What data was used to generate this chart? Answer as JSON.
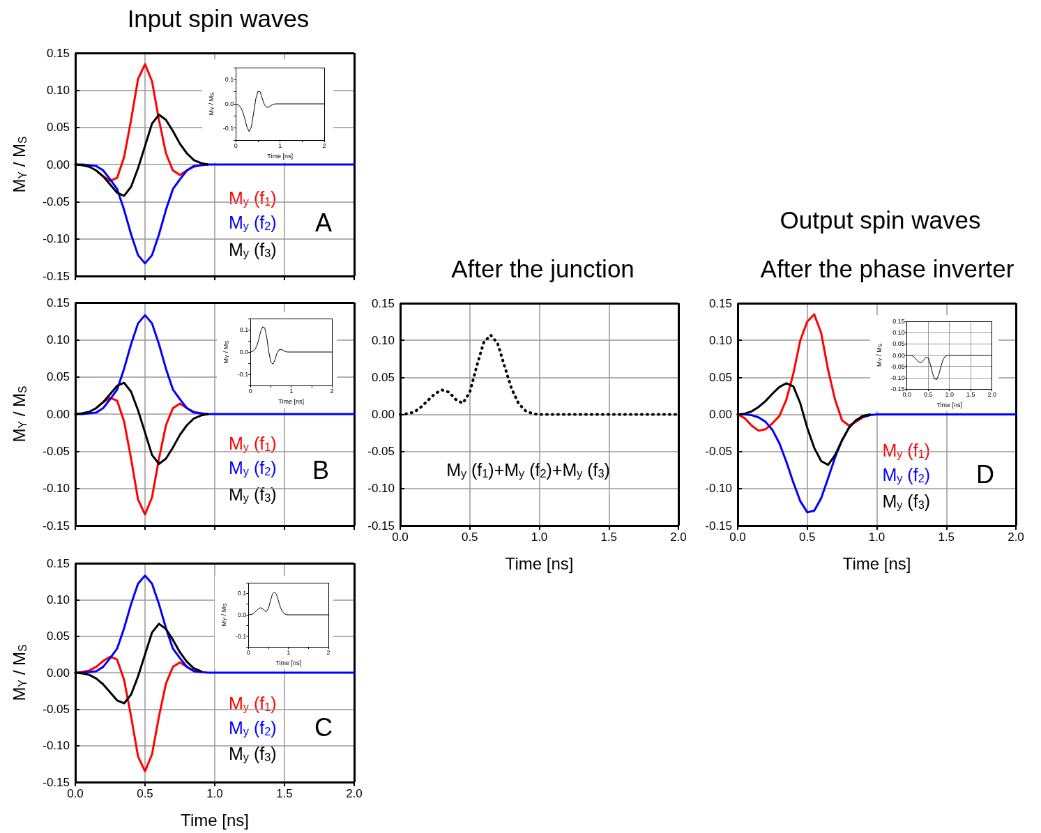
{
  "chart_data": [
    {
      "type": "line",
      "title": "Input spin waves",
      "ylabel": "M$_{Y}$ / M$_{S}$",
      "x": [
        0,
        0.05,
        0.1,
        0.15,
        0.2,
        0.25,
        0.3,
        0.35,
        0.4,
        0.45,
        0.5,
        0.55,
        0.6,
        0.65,
        0.7,
        0.75,
        0.8,
        0.85,
        0.9,
        0.95,
        1,
        1.5,
        2
      ],
      "xlim": [
        0,
        2
      ],
      "ylim": [
        -0.15,
        0.15
      ],
      "xticks": [
        {
          "value": 0,
          "label": null
        },
        {
          "value": 0.5,
          "label": null
        },
        {
          "value": 1,
          "label": null
        },
        {
          "value": 1.5,
          "label": null
        },
        {
          "value": 2,
          "label": null
        }
      ],
      "yticks": [
        {
          "value": -0.15,
          "label": "-0.15"
        },
        {
          "value": -0.1,
          "label": "-0.10"
        },
        {
          "value": -0.05,
          "label": "-0.05"
        },
        {
          "value": 0,
          "label": "0.00"
        },
        {
          "value": 0.05,
          "label": "0.05"
        },
        {
          "value": 0.1,
          "label": "0.10"
        },
        {
          "value": 0.15,
          "label": "0.15"
        }
      ],
      "tick_labels": "y",
      "grid": true,
      "marker": "none",
      "line_style": "solid",
      "annotations": [
        "A"
      ],
      "series": [
        {
          "name": "M$_{y}$ (f$_{1}$)",
          "color": "#ff0000",
          "x": [
            0.15,
            0.2,
            0.25,
            0.3,
            0.35,
            0.4,
            0.45,
            0.5,
            0.55,
            0.6,
            0.65,
            0.7,
            0.75,
            0.8,
            0.85,
            0.9,
            0.95
          ],
          "values": [
            -0.008,
            -0.016,
            -0.022,
            -0.018,
            0.01,
            0.06,
            0.115,
            0.135,
            0.112,
            0.06,
            0.015,
            -0.008,
            -0.014,
            -0.008,
            -0.003,
            -0.001,
            0
          ]
        },
        {
          "name": "M$_{y}$ (f$_{2}$)",
          "color": "#0000ff",
          "values": [
            0,
            0,
            -0.001,
            -0.002,
            -0.008,
            -0.02,
            -0.033,
            -0.061,
            -0.094,
            -0.122,
            -0.133,
            -0.122,
            -0.094,
            -0.061,
            -0.033,
            -0.02,
            -0.008,
            -0.002,
            -0.001,
            0,
            0,
            0,
            0
          ]
        },
        {
          "name": "M$_{y}$ (f$_{3}$)",
          "color": "#000000",
          "x": [
            0,
            0.05,
            0.1,
            0.15,
            0.2,
            0.25,
            0.3,
            0.35,
            0.4,
            0.45,
            0.5,
            0.55,
            0.6,
            0.65,
            0.7,
            0.75,
            0.8,
            0.85,
            0.9,
            0.95
          ],
          "values": [
            0,
            -0.001,
            -0.003,
            -0.008,
            -0.016,
            -0.027,
            -0.038,
            -0.042,
            -0.03,
            -0.005,
            0.025,
            0.055,
            0.067,
            0.06,
            0.045,
            0.028,
            0.015,
            0.006,
            0.002,
            0
          ]
        }
      ]
    },
    {
      "type": "line",
      "xlabel": "Time [ns]",
      "ylabel": "M$_{Y}$ / M$_{S}$",
      "x": [
        0,
        0.05,
        0.1,
        0.15,
        0.2,
        0.25,
        0.3,
        0.35,
        0.4,
        0.45,
        0.5,
        0.55,
        0.6,
        0.65,
        0.7,
        0.75,
        0.8,
        0.85,
        0.9,
        0.95,
        1,
        1.5,
        2
      ],
      "xlim": [
        0,
        2
      ],
      "ylim": [
        -0.15,
        0.15
      ],
      "xticks": [
        0,
        {
          "value": 0.5,
          "label": null
        },
        1,
        {
          "value": 1.5,
          "label": null
        },
        2
      ],
      "yticks": [
        {
          "value": -0.15,
          "label": null
        },
        {
          "value": -0.1,
          "label": "-0.1"
        },
        {
          "value": -0.05,
          "label": null
        },
        {
          "value": 0,
          "label": "0.0"
        },
        {
          "value": 0.05,
          "label": null
        },
        {
          "value": 0.1,
          "label": "0.1"
        },
        {
          "value": 0.15,
          "label": null
        }
      ],
      "grid": false,
      "marker": "none",
      "line_style": "solid",
      "series": [
        {
          "color": "#000000",
          "values": [
            0,
            -0.003,
            -0.012,
            -0.03,
            -0.06,
            -0.095,
            -0.115,
            -0.095,
            -0.04,
            0.02,
            0.052,
            0.05,
            0.02,
            -0.005,
            -0.015,
            -0.013,
            -0.006,
            -0.002,
            0,
            0,
            0,
            0,
            0
          ]
        }
      ]
    },
    {
      "type": "line",
      "ylabel": "M$_{Y}$ / M$_{S}$",
      "x": [
        0,
        0.05,
        0.1,
        0.15,
        0.2,
        0.25,
        0.3,
        0.35,
        0.4,
        0.45,
        0.5,
        0.55,
        0.6,
        0.65,
        0.7,
        0.75,
        0.8,
        0.85,
        0.9,
        0.95,
        1,
        1.5,
        2
      ],
      "xlim": [
        0,
        2
      ],
      "ylim": [
        -0.15,
        0.15
      ],
      "xticks": [
        {
          "value": 0,
          "label": null
        },
        {
          "value": 0.5,
          "label": null
        },
        {
          "value": 1,
          "label": null
        },
        {
          "value": 1.5,
          "label": null
        },
        {
          "value": 2,
          "label": null
        }
      ],
      "yticks": [
        {
          "value": -0.15,
          "label": "-0.15"
        },
        {
          "value": -0.1,
          "label": "-0.10"
        },
        {
          "value": -0.05,
          "label": "-0.05"
        },
        {
          "value": 0,
          "label": "0.00"
        },
        {
          "value": 0.05,
          "label": "0.05"
        },
        {
          "value": 0.1,
          "label": "0.10"
        },
        {
          "value": 0.15,
          "label": "0.15"
        }
      ],
      "tick_labels": "y",
      "grid": true,
      "marker": "none",
      "line_style": "solid",
      "annotations": [
        "B"
      ],
      "series": [
        {
          "name": "M$_{y}$ (f$_{1}$)",
          "color": "#ff0000",
          "x": [
            0.15,
            0.2,
            0.25,
            0.3,
            0.35,
            0.4,
            0.45,
            0.5,
            0.55,
            0.6,
            0.65,
            0.7,
            0.75,
            0.8,
            0.85,
            0.9,
            0.95
          ],
          "values": [
            0.008,
            0.016,
            0.022,
            0.018,
            -0.01,
            -0.06,
            -0.115,
            -0.135,
            -0.112,
            -0.06,
            -0.015,
            0.008,
            0.014,
            0.008,
            0.003,
            0.001,
            0
          ]
        },
        {
          "name": "M$_{y}$ (f$_{2}$)",
          "color": "#0000ff",
          "values": [
            0,
            0,
            0.001,
            0.002,
            0.008,
            0.02,
            0.033,
            0.061,
            0.094,
            0.122,
            0.133,
            0.122,
            0.094,
            0.061,
            0.033,
            0.02,
            0.008,
            0.002,
            0.001,
            0,
            0,
            0,
            0
          ]
        },
        {
          "name": "M$_{y}$ (f$_{3}$)",
          "color": "#000000",
          "x": [
            0,
            0.05,
            0.1,
            0.15,
            0.2,
            0.25,
            0.3,
            0.35,
            0.4,
            0.45,
            0.5,
            0.55,
            0.6,
            0.65,
            0.7,
            0.75,
            0.8,
            0.85,
            0.9,
            0.95
          ],
          "values": [
            0,
            0.001,
            0.003,
            0.008,
            0.016,
            0.027,
            0.038,
            0.042,
            0.03,
            0.005,
            -0.025,
            -0.055,
            -0.067,
            -0.06,
            -0.045,
            -0.028,
            -0.015,
            -0.006,
            -0.002,
            0
          ]
        }
      ]
    },
    {
      "type": "line",
      "xlabel": "Time [ns]",
      "ylabel": "M$_{Y}$ / M$_{S}$",
      "x": [
        0,
        0.05,
        0.1,
        0.15,
        0.2,
        0.25,
        0.3,
        0.35,
        0.4,
        0.45,
        0.5,
        0.55,
        0.6,
        0.65,
        0.7,
        0.75,
        0.8,
        0.85,
        0.9,
        0.95,
        1,
        1.5,
        2
      ],
      "xlim": [
        0,
        2
      ],
      "ylim": [
        -0.15,
        0.15
      ],
      "xticks": [
        0,
        {
          "value": 0.5,
          "label": null
        },
        1,
        {
          "value": 1.5,
          "label": null
        },
        2
      ],
      "yticks": [
        {
          "value": -0.15,
          "label": null
        },
        {
          "value": -0.1,
          "label": "-0.1"
        },
        {
          "value": -0.05,
          "label": null
        },
        {
          "value": 0,
          "label": "0.0"
        },
        {
          "value": 0.05,
          "label": null
        },
        {
          "value": 0.1,
          "label": "0.1"
        },
        {
          "value": 0.15,
          "label": null
        }
      ],
      "grid": false,
      "marker": "none",
      "line_style": "solid",
      "series": [
        {
          "color": "#000000",
          "values": [
            0,
            0.003,
            0.01,
            0.025,
            0.055,
            0.092,
            0.113,
            0.108,
            0.065,
            0,
            -0.045,
            -0.055,
            -0.035,
            -0.005,
            0.01,
            0.012,
            0.008,
            0.003,
            0,
            0,
            0,
            0,
            0
          ]
        }
      ]
    },
    {
      "type": "line",
      "title": "After the junction",
      "xlabel": "Time [ns]",
      "x": [
        0,
        0.05,
        0.1,
        0.15,
        0.2,
        0.25,
        0.3,
        0.35,
        0.4,
        0.45,
        0.5,
        0.55,
        0.6,
        0.65,
        0.7,
        0.75,
        0.8,
        0.85,
        0.9,
        0.95,
        1,
        1.5,
        2
      ],
      "xlim": [
        0,
        2
      ],
      "ylim": [
        -0.15,
        0.15
      ],
      "xticks": [
        {
          "value": 0,
          "label": "0.0"
        },
        0.5,
        {
          "value": 1,
          "label": "1.0"
        },
        1.5,
        {
          "value": 2,
          "label": "2.0"
        }
      ],
      "yticks": [
        {
          "value": -0.15,
          "label": "-0.15"
        },
        {
          "value": -0.1,
          "label": "-0.10"
        },
        {
          "value": -0.05,
          "label": "-0.05"
        },
        {
          "value": 0,
          "label": "0.00"
        },
        {
          "value": 0.05,
          "label": "0.05"
        },
        {
          "value": 0.1,
          "label": "0.10"
        },
        {
          "value": 0.15,
          "label": "0.15"
        }
      ],
      "grid": true,
      "marker": "none",
      "line_style": "dotted",
      "series": [
        {
          "name": "M$_{y}$ (f$_{1}$)+M$_{y}$ (f$_{2}$)+M$_{y}$ (f$_{3}$)",
          "color": "#000000",
          "values": [
            0,
            0.001,
            0.003,
            0.01,
            0.019,
            0.028,
            0.033,
            0.03,
            0.02,
            0.015,
            0.03,
            0.065,
            0.097,
            0.107,
            0.096,
            0.065,
            0.035,
            0.015,
            0.005,
            0.001,
            0,
            0,
            0
          ]
        }
      ]
    },
    {
      "type": "line",
      "title": "Output spin waves",
      "subtitle": "After the phase inverter",
      "xlabel": "Time [ns]",
      "x": [
        0,
        0.05,
        0.1,
        0.15,
        0.2,
        0.25,
        0.3,
        0.35,
        0.4,
        0.45,
        0.5,
        0.55,
        0.6,
        0.65,
        0.7,
        0.75,
        0.8,
        0.85,
        0.9,
        0.95,
        1,
        1.5,
        2
      ],
      "xlim": [
        0,
        2
      ],
      "ylim": [
        -0.15,
        0.15
      ],
      "xticks": [
        {
          "value": 0,
          "label": "0.0"
        },
        0.5,
        {
          "value": 1,
          "label": "1.0"
        },
        1.5,
        {
          "value": 2,
          "label": "2.0"
        }
      ],
      "yticks": [
        {
          "value": -0.15,
          "label": "-0.15"
        },
        {
          "value": -0.1,
          "label": "-0.10"
        },
        {
          "value": -0.05,
          "label": "-0.05"
        },
        {
          "value": 0,
          "label": "0.00"
        },
        {
          "value": 0.05,
          "label": "0.05"
        },
        {
          "value": 0.1,
          "label": "0.10"
        },
        {
          "value": 0.15,
          "label": "0.15"
        }
      ],
      "grid": true,
      "marker": "none",
      "line_style": "solid",
      "annotations": [
        "D"
      ],
      "series": [
        {
          "name": "M$_{y}$ (f$_{1}$)",
          "color": "#ff0000",
          "x": [
            0,
            0.05,
            0.1,
            0.15,
            0.2,
            0.25,
            0.3,
            0.35,
            0.4,
            0.45,
            0.5,
            0.55,
            0.6,
            0.65,
            0.7,
            0.75,
            0.8,
            0.85,
            0.9,
            0.95
          ],
          "values": [
            0,
            -0.005,
            -0.015,
            -0.022,
            -0.02,
            -0.012,
            -0.002,
            0.02,
            0.055,
            0.1,
            0.125,
            0.135,
            0.11,
            0.06,
            0.02,
            -0.008,
            -0.015,
            -0.01,
            -0.004,
            -0.001
          ]
        },
        {
          "name": "M$_{y}$ (f$_{2}$)",
          "color": "#0000ff",
          "values": [
            0,
            0,
            -0.001,
            -0.004,
            -0.01,
            -0.021,
            -0.039,
            -0.064,
            -0.092,
            -0.117,
            -0.132,
            -0.13,
            -0.113,
            -0.086,
            -0.058,
            -0.035,
            -0.018,
            -0.008,
            -0.003,
            -0.001,
            0,
            0,
            0
          ]
        },
        {
          "name": "M$_{y}$ (f$_{3}$)",
          "color": "#000000",
          "x": [
            0,
            0.05,
            0.1,
            0.15,
            0.2,
            0.25,
            0.3,
            0.35,
            0.4,
            0.45,
            0.5,
            0.55,
            0.6,
            0.65,
            0.7,
            0.75,
            0.8,
            0.85,
            0.9,
            0.95
          ],
          "values": [
            0,
            0.001,
            0.004,
            0.01,
            0.018,
            0.028,
            0.037,
            0.042,
            0.038,
            0.015,
            -0.018,
            -0.045,
            -0.063,
            -0.068,
            -0.055,
            -0.035,
            -0.018,
            -0.008,
            -0.002,
            0
          ]
        }
      ]
    },
    {
      "type": "line",
      "xlabel": "Time [ns]",
      "ylabel": "M$_{Y}$ / M$_{S}$",
      "x": [
        0,
        0.05,
        0.1,
        0.15,
        0.2,
        0.25,
        0.3,
        0.35,
        0.4,
        0.45,
        0.5,
        0.55,
        0.6,
        0.65,
        0.7,
        0.75,
        0.8,
        0.85,
        0.9,
        0.95,
        1,
        1.5,
        2
      ],
      "xlim": [
        0,
        2
      ],
      "ylim": [
        -0.15,
        0.15
      ],
      "xticks": [
        {
          "value": 0,
          "label": "0.0"
        },
        0.5,
        {
          "value": 1,
          "label": "1.0"
        },
        1.5,
        {
          "value": 2,
          "label": "2.0"
        }
      ],
      "yticks": [
        {
          "value": -0.15,
          "label": "-0.15"
        },
        {
          "value": -0.1,
          "label": "-0.10"
        },
        {
          "value": -0.05,
          "label": "-0.05"
        },
        {
          "value": 0,
          "label": "0.00"
        },
        {
          "value": 0.05,
          "label": "0.05"
        },
        {
          "value": 0.1,
          "label": "0.10"
        },
        {
          "value": 0.15,
          "label": "0.15"
        }
      ],
      "grid": true,
      "marker": "none",
      "line_style": "solid",
      "series": [
        {
          "color": "#000000",
          "values": [
            0,
            0,
            0,
            -0.005,
            -0.015,
            -0.025,
            -0.033,
            -0.03,
            -0.02,
            -0.01,
            -0.012,
            -0.04,
            -0.08,
            -0.105,
            -0.108,
            -0.085,
            -0.05,
            -0.02,
            -0.005,
            0,
            0,
            0,
            0
          ]
        }
      ]
    },
    {
      "type": "line",
      "xlabel": "Time [ns]",
      "ylabel": "M$_{Y}$ / M$_{S}$",
      "x": [
        0,
        0.05,
        0.1,
        0.15,
        0.2,
        0.25,
        0.3,
        0.35,
        0.4,
        0.45,
        0.5,
        0.55,
        0.6,
        0.65,
        0.7,
        0.75,
        0.8,
        0.85,
        0.9,
        0.95,
        1,
        1.5,
        2
      ],
      "xlim": [
        0,
        2
      ],
      "ylim": [
        -0.15,
        0.15
      ],
      "xticks": [
        {
          "value": 0,
          "label": "0.0"
        },
        0.5,
        {
          "value": 1,
          "label": "1.0"
        },
        1.5,
        {
          "value": 2,
          "label": "2.0"
        }
      ],
      "yticks": [
        {
          "value": -0.15,
          "label": "-0.15"
        },
        {
          "value": -0.1,
          "label": "-0.10"
        },
        {
          "value": -0.05,
          "label": "-0.05"
        },
        {
          "value": 0,
          "label": "0.00"
        },
        {
          "value": 0.05,
          "label": "0.05"
        },
        {
          "value": 0.1,
          "label": "0.10"
        },
        {
          "value": 0.15,
          "label": "0.15"
        }
      ],
      "grid": true,
      "marker": "none",
      "line_style": "solid",
      "annotations": [
        "C"
      ],
      "series": [
        {
          "name": "M$_{y}$ (f$_{1}$)",
          "color": "#ff0000",
          "x": [
            0,
            0.05,
            0.1,
            0.15,
            0.2,
            0.25,
            0.3,
            0.35,
            0.4,
            0.45,
            0.5,
            0.55,
            0.6,
            0.65,
            0.7,
            0.75,
            0.8,
            0.85,
            0.9
          ],
          "values": [
            0,
            0.001,
            0.003,
            0.008,
            0.016,
            0.022,
            0.018,
            -0.01,
            -0.06,
            -0.115,
            -0.135,
            -0.112,
            -0.06,
            -0.015,
            0.008,
            0.014,
            0.008,
            0.003,
            0.001
          ]
        },
        {
          "name": "M$_{y}$ (f$_{2}$)",
          "color": "#0000ff",
          "values": [
            0,
            0,
            0.001,
            0.002,
            0.008,
            0.02,
            0.033,
            0.061,
            0.094,
            0.122,
            0.133,
            0.122,
            0.094,
            0.061,
            0.033,
            0.02,
            0.008,
            0.002,
            0.001,
            0,
            0,
            0,
            0
          ]
        },
        {
          "name": "M$_{y}$ (f$_{3}$)",
          "color": "#000000",
          "x": [
            0,
            0.05,
            0.1,
            0.15,
            0.2,
            0.25,
            0.3,
            0.35,
            0.4,
            0.45,
            0.5,
            0.55,
            0.6,
            0.65,
            0.7,
            0.75,
            0.8,
            0.85,
            0.9
          ],
          "values": [
            0,
            -0.001,
            -0.003,
            -0.008,
            -0.016,
            -0.027,
            -0.038,
            -0.042,
            -0.03,
            -0.005,
            0.025,
            0.055,
            0.067,
            0.06,
            0.045,
            0.028,
            0.015,
            0.006,
            0.002
          ]
        }
      ]
    },
    {
      "type": "line",
      "xlabel": "Time [ns]",
      "ylabel": "M$_{Y}$ / M$_{S}$",
      "x": [
        0,
        0.05,
        0.1,
        0.15,
        0.2,
        0.25,
        0.3,
        0.35,
        0.4,
        0.45,
        0.5,
        0.55,
        0.6,
        0.65,
        0.7,
        0.75,
        0.8,
        0.85,
        0.9,
        0.95,
        1,
        1.5,
        2
      ],
      "xlim": [
        0,
        2
      ],
      "ylim": [
        -0.15,
        0.15
      ],
      "xticks": [
        0,
        {
          "value": 0.5,
          "label": null
        },
        1,
        {
          "value": 1.5,
          "label": null
        },
        2
      ],
      "yticks": [
        {
          "value": -0.15,
          "label": null
        },
        {
          "value": -0.1,
          "label": "-0.1"
        },
        {
          "value": -0.05,
          "label": null
        },
        {
          "value": 0,
          "label": "0.0"
        },
        {
          "value": 0.05,
          "label": null
        },
        {
          "value": 0.1,
          "label": "0.1"
        },
        {
          "value": 0.15,
          "label": null
        }
      ],
      "grid": false,
      "marker": "none",
      "line_style": "solid",
      "series": [
        {
          "color": "#000000",
          "values": [
            0,
            0.001,
            0.003,
            0.01,
            0.019,
            0.028,
            0.033,
            0.03,
            0.02,
            0.015,
            0.03,
            0.065,
            0.097,
            0.107,
            0.096,
            0.065,
            0.035,
            0.015,
            0.005,
            0.001,
            0,
            0,
            0
          ]
        }
      ]
    }
  ]
}
